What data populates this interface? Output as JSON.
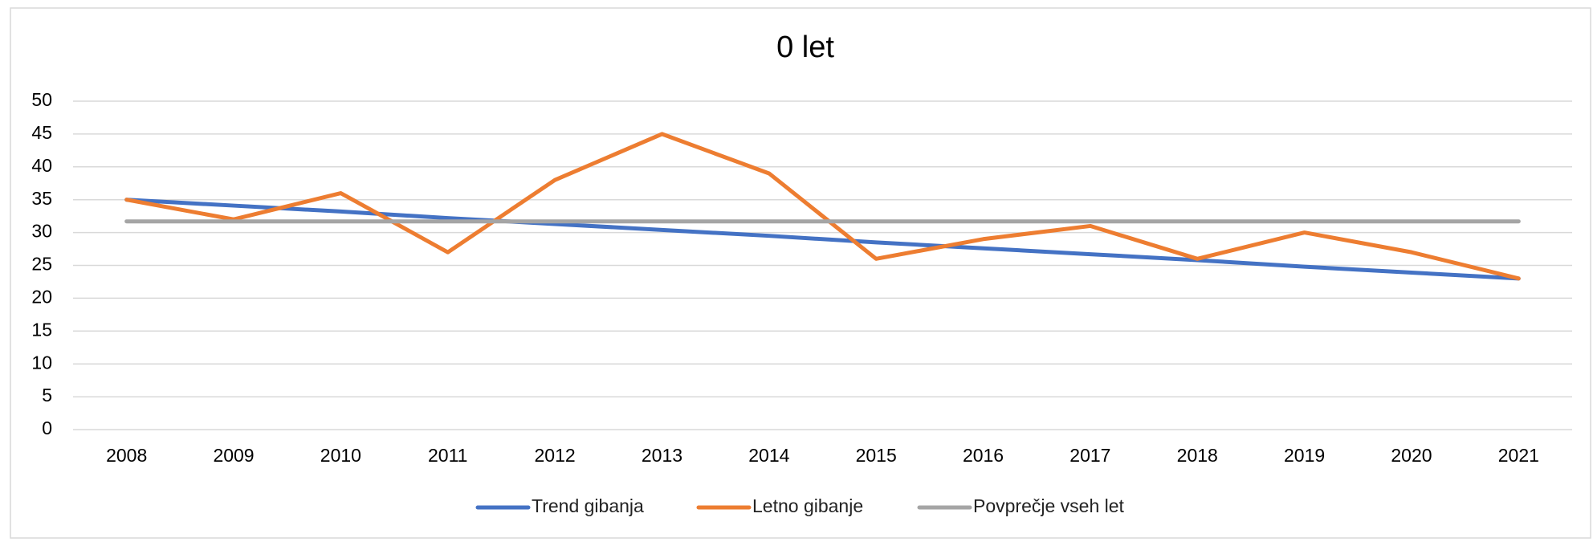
{
  "chart_data": {
    "type": "line",
    "title": "0 let",
    "categories": [
      "2008",
      "2009",
      "2010",
      "2011",
      "2012",
      "2013",
      "2014",
      "2015",
      "2016",
      "2017",
      "2018",
      "2019",
      "2020",
      "2021"
    ],
    "series": [
      {
        "name": "Trend gibanja",
        "color": "#4472c4",
        "values": [
          35,
          34.1,
          33.2,
          32.2,
          31.3,
          30.4,
          29.5,
          28.5,
          27.6,
          26.7,
          25.8,
          24.8,
          23.9,
          23
        ]
      },
      {
        "name": "Letno gibanje",
        "color": "#ed7d31",
        "values": [
          35,
          32,
          36,
          27,
          38,
          45,
          39,
          26,
          29,
          31,
          26,
          30,
          27,
          23
        ]
      },
      {
        "name": "Povprečje vseh let",
        "color": "#a5a5a5",
        "values": [
          31.7,
          31.7,
          31.7,
          31.7,
          31.7,
          31.7,
          31.7,
          31.7,
          31.7,
          31.7,
          31.7,
          31.7,
          31.7,
          31.7
        ]
      }
    ],
    "ylim": [
      0,
      50
    ],
    "yticks": [
      0,
      5,
      10,
      15,
      20,
      25,
      30,
      35,
      40,
      45,
      50
    ],
    "grid": true,
    "legend": "bottom"
  }
}
